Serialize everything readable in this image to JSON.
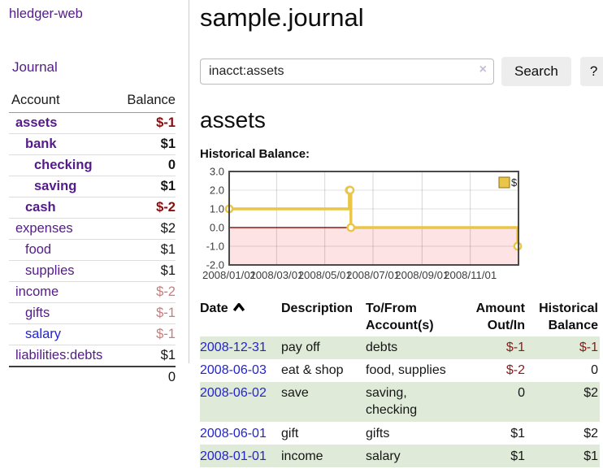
{
  "app": {
    "title": "hledger-web"
  },
  "colors": {
    "link_purple": "#551a8b",
    "link_blue": "#2323d6",
    "negative_strong": "#8b0d0d",
    "negative_soft": "#c47e7e",
    "table_stripe_green": "#dfead9",
    "chart_line_gold": "#e9c647",
    "chart_negative_pink": "#fde3e3",
    "chart_zero_line_red": "#8e1919"
  },
  "sidebar": {
    "journal_link": "Journal",
    "accounts_table": {
      "col_account": "Account",
      "col_balance": "Balance",
      "rows": [
        {
          "name": "assets",
          "balance": "$-1",
          "level": 1,
          "bold": true,
          "balance_class": "neg-strong",
          "link": "purple"
        },
        {
          "name": "bank",
          "balance": "$1",
          "level": 2,
          "bold": true,
          "balance_class": "pos",
          "link": "purple"
        },
        {
          "name": "checking",
          "balance": "0",
          "level": 3,
          "bold": true,
          "balance_class": "pos",
          "link": "purple"
        },
        {
          "name": "saving",
          "balance": "$1",
          "level": 3,
          "bold": true,
          "balance_class": "pos",
          "link": "purple"
        },
        {
          "name": "cash",
          "balance": "$-2",
          "level": 2,
          "bold": true,
          "balance_class": "neg-strong",
          "link": "purple"
        },
        {
          "name": "expenses",
          "balance": "$2",
          "level": 1,
          "bold": false,
          "balance_class": "pos",
          "link": "purple"
        },
        {
          "name": "food",
          "balance": "$1",
          "level": 2,
          "bold": false,
          "balance_class": "pos",
          "link": "purple"
        },
        {
          "name": "supplies",
          "balance": "$1",
          "level": 2,
          "bold": false,
          "balance_class": "pos",
          "link": "purple"
        },
        {
          "name": "income",
          "balance": "$-2",
          "level": 1,
          "bold": false,
          "balance_class": "neg-soft",
          "link": "purple"
        },
        {
          "name": "gifts",
          "balance": "$-1",
          "level": 2,
          "bold": false,
          "balance_class": "neg-soft",
          "link": "purple"
        },
        {
          "name": "salary",
          "balance": "$-1",
          "level": 2,
          "bold": false,
          "balance_class": "neg-soft",
          "link": "blue"
        },
        {
          "name": "liabilities:debts",
          "balance": "$1",
          "level": 1,
          "bold": false,
          "balance_class": "pos",
          "link": "purple"
        }
      ],
      "total": "0"
    }
  },
  "header": {
    "title": "sample.journal"
  },
  "search": {
    "value": "inacct:assets",
    "clear_label": "×",
    "search_button": "Search",
    "help_button": "?"
  },
  "account_page": {
    "heading": "assets",
    "section_label": "Historical Balance:"
  },
  "chart_data": {
    "type": "line",
    "step": true,
    "title": "Historical Balance:",
    "series": [
      {
        "name": "$",
        "points": [
          [
            "2008-01-01",
            1
          ],
          [
            "2008-06-01",
            2
          ],
          [
            "2008-06-02",
            2
          ],
          [
            "2008-06-03",
            0
          ],
          [
            "2008-12-31",
            -1
          ]
        ]
      }
    ],
    "x_ticks": [
      "2008/01/01",
      "2008/03/01",
      "2008/05/01",
      "2008/07/01",
      "2008/09/01",
      "2008/11/01"
    ],
    "y_ticks": [
      "3.0",
      "2.0",
      "1.0",
      "0.0",
      "-1.0",
      "-2.0"
    ],
    "ylim": [
      -2,
      3
    ],
    "xlim": [
      "2008-01-01",
      "2009-01-01"
    ],
    "grid": true,
    "legend_position": "top-right",
    "negative_region_shaded": true,
    "line_color": "#e9c647",
    "negative_fill": "#fde3e3",
    "zero_line_color": "#8e1919"
  },
  "register_table": {
    "sort_icon": "chevron-up",
    "columns": [
      "Date",
      "Description",
      "To/From Account(s)",
      "Amount Out/In",
      "Historical Balance"
    ],
    "rows": [
      {
        "date": "2008-12-31",
        "description": "pay off",
        "accounts": "debts",
        "amount": "$-1",
        "balance": "$-1",
        "amount_negative": true,
        "balance_negative": true
      },
      {
        "date": "2008-06-03",
        "description": "eat & shop",
        "accounts": "food, supplies",
        "amount": "$-2",
        "balance": "0",
        "amount_negative": true,
        "balance_negative": false
      },
      {
        "date": "2008-06-02",
        "description": "save",
        "accounts": "saving, checking",
        "amount": "0",
        "balance": "$2",
        "amount_negative": false,
        "balance_negative": false
      },
      {
        "date": "2008-06-01",
        "description": "gift",
        "accounts": "gifts",
        "amount": "$1",
        "balance": "$2",
        "amount_negative": false,
        "balance_negative": false
      },
      {
        "date": "2008-01-01",
        "description": "income",
        "accounts": "salary",
        "amount": "$1",
        "balance": "$1",
        "amount_negative": false,
        "balance_negative": false
      }
    ]
  }
}
